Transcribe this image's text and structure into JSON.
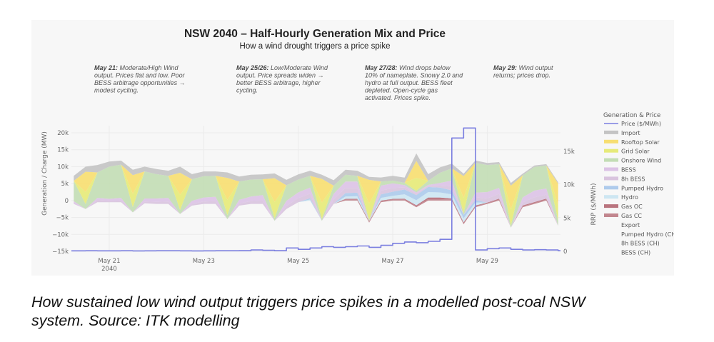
{
  "chart_data": {
    "type": "area",
    "title": "NSW 2040 – Half-Hourly Generation Mix and Price",
    "subtitle": "How a wind drought triggers a price spike",
    "ylabel": "Generation / Charge (MW)",
    "y2label": "RRP ($/MWh)",
    "ylim": [
      -15000,
      20000
    ],
    "y2lim": [
      0,
      18000
    ],
    "y_ticks": [
      {
        "value": 20000,
        "label": "20k"
      },
      {
        "value": 15000,
        "label": "15k"
      },
      {
        "value": 10000,
        "label": "10k"
      },
      {
        "value": 5000,
        "label": "5k"
      },
      {
        "value": 0,
        "label": "0"
      },
      {
        "value": -5000,
        "label": "−5k"
      },
      {
        "value": -10000,
        "label": "−10k"
      },
      {
        "value": -15000,
        "label": "−15k"
      }
    ],
    "y2_ticks": [
      {
        "value": 15000,
        "label": "15k"
      },
      {
        "value": 10000,
        "label": "10k"
      },
      {
        "value": 5000,
        "label": "5k"
      },
      {
        "value": 0,
        "label": "0"
      }
    ],
    "x_ticks": [
      {
        "day": 21,
        "label": "May 21",
        "sublabel": "2040"
      },
      {
        "day": 23,
        "label": "May 23",
        "sublabel": ""
      },
      {
        "day": 25,
        "label": "May 25",
        "sublabel": ""
      },
      {
        "day": 27,
        "label": "May 27",
        "sublabel": ""
      },
      {
        "day": 29,
        "label": "May 29",
        "sublabel": ""
      }
    ],
    "xlim_days": [
      20.2,
      30.55
    ],
    "grid": true,
    "legend": {
      "title": "Generation & Price",
      "position": "right",
      "entries": [
        {
          "name": "Price ($/MWh)",
          "color": "#7b7fe0",
          "kind": "line"
        },
        {
          "name": "Import",
          "color": "#c4c4c4",
          "kind": "area"
        },
        {
          "name": "Rooftop Solar",
          "color": "#f7de72",
          "kind": "area"
        },
        {
          "name": "Grid Solar",
          "color": "#e6ea7a",
          "kind": "area"
        },
        {
          "name": "Onshore Wind",
          "color": "#c3ddb5",
          "kind": "area"
        },
        {
          "name": "BESS",
          "color": "#dcc3e6",
          "kind": "area"
        },
        {
          "name": "8h BESS",
          "color": "#d9c4de",
          "kind": "area"
        },
        {
          "name": "Pumped Hydro",
          "color": "#aecbec",
          "kind": "area"
        },
        {
          "name": "Hydro",
          "color": "#cde6f2",
          "kind": "area"
        },
        {
          "name": "Gas OC",
          "color": "#b9747e",
          "kind": "area"
        },
        {
          "name": "Gas CC",
          "color": "#c2868e",
          "kind": "area"
        },
        {
          "name": "Export",
          "color": "#f7f7f7",
          "kind": "area"
        },
        {
          "name": "Pumped Hydro (CH)",
          "color": "#f7f7f7",
          "kind": "area"
        },
        {
          "name": "8h BESS (CH)",
          "color": "#f7f7f7",
          "kind": "area"
        },
        {
          "name": "BESS (CH)",
          "color": "#f7f7f7",
          "kind": "area"
        }
      ]
    },
    "annotations": [
      {
        "bold": "May 21:",
        "lines": [
          "Moderate/High Wind",
          "output. Prices flat and low. Poor",
          "BESS arbitrage opportunities →",
          "modest cycling."
        ]
      },
      {
        "bold": "May 25/26:",
        "lines": [
          "Low/Moderate Wind",
          "output. Price spreads widen →",
          "better BESS arbitrage, higher",
          "cycling."
        ]
      },
      {
        "bold": "May 27/28:",
        "lines": [
          "Wind drops below",
          "10% of nameplate. Snowy 2.0 and",
          "hydro at full output. BESS fleet",
          "depleted. Open-cycle gas",
          "activated. Prices spike."
        ]
      },
      {
        "bold": "May 29:",
        "lines": [
          "Wind output",
          "returns; prices drop."
        ]
      }
    ],
    "series_note": "Approximate values read from chart, sampled every 6 hours (MW); days are May dates with fractional time",
    "x_days": [
      20.25,
      20.5,
      20.75,
      21.0,
      21.25,
      21.5,
      21.75,
      22.0,
      22.25,
      22.5,
      22.75,
      23.0,
      23.25,
      23.5,
      23.75,
      24.0,
      24.25,
      24.5,
      24.75,
      25.0,
      25.25,
      25.5,
      25.75,
      26.0,
      26.25,
      26.5,
      26.75,
      27.0,
      27.25,
      27.5,
      27.75,
      28.0,
      28.25,
      28.5,
      28.75,
      29.0,
      29.25,
      29.5,
      29.75,
      30.0,
      30.25,
      30.5
    ],
    "series": [
      {
        "name": "Gas CC",
        "values": [
          0,
          0,
          0,
          0,
          0,
          0,
          0,
          0,
          0,
          0,
          0,
          0,
          0,
          0,
          0,
          0,
          0,
          0,
          0,
          0,
          0,
          0,
          0,
          300,
          300,
          200,
          300,
          300,
          300,
          300,
          400,
          400,
          300,
          300,
          300,
          200,
          300,
          0,
          300,
          300,
          300,
          0
        ]
      },
      {
        "name": "Gas OC",
        "values": [
          0,
          0,
          0,
          0,
          0,
          0,
          0,
          0,
          0,
          0,
          0,
          0,
          0,
          0,
          0,
          0,
          0,
          0,
          0,
          0,
          0,
          0,
          0,
          200,
          200,
          200,
          200,
          200,
          250,
          300,
          500,
          500,
          300,
          250,
          250,
          200,
          250,
          0,
          250,
          250,
          250,
          0
        ]
      },
      {
        "name": "Hydro",
        "values": [
          0,
          0,
          0,
          0,
          0,
          0,
          0,
          0,
          0,
          0,
          0,
          0,
          0,
          0,
          0,
          0,
          0,
          0,
          0,
          0,
          300,
          0,
          0,
          700,
          800,
          0,
          800,
          900,
          1300,
          1500,
          1600,
          1500,
          1200,
          1200,
          900,
          0,
          0,
          0,
          0,
          0,
          0,
          0
        ]
      },
      {
        "name": "Pumped Hydro",
        "values": [
          0,
          0,
          0,
          0,
          0,
          0,
          0,
          0,
          0,
          0,
          0,
          0,
          0,
          0,
          0,
          0,
          0,
          0,
          0,
          0,
          400,
          0,
          0,
          1000,
          1000,
          0,
          1000,
          1200,
          1400,
          1500,
          1500,
          1400,
          1200,
          1000,
          700,
          0,
          0,
          0,
          0,
          0,
          0,
          0
        ]
      },
      {
        "name": "8h BESS",
        "values": [
          300,
          0,
          600,
          400,
          500,
          0,
          500,
          600,
          700,
          0,
          500,
          700,
          800,
          0,
          600,
          800,
          1000,
          0,
          900,
          1200,
          1300,
          0,
          1300,
          1500,
          1400,
          0,
          1100,
          1100,
          600,
          400,
          300,
          600,
          1200,
          0,
          800,
          1200,
          1400,
          0,
          900,
          1400,
          1200,
          0
        ]
      },
      {
        "name": "BESS",
        "values": [
          500,
          0,
          700,
          600,
          800,
          0,
          900,
          1000,
          1100,
          0,
          900,
          1200,
          1300,
          0,
          1100,
          1400,
          1600,
          0,
          1500,
          1700,
          1800,
          0,
          1700,
          1900,
          1900,
          0,
          1500,
          1400,
          700,
          400,
          300,
          800,
          1700,
          0,
          1400,
          1900,
          1800,
          0,
          1500,
          2000,
          1800,
          0
        ]
      },
      {
        "name": "Onshore Wind",
        "values": [
          6000,
          1500,
          7500,
          9500,
          9800,
          1500,
          8000,
          7200,
          6500,
          1200,
          6400,
          6300,
          6200,
          1200,
          5400,
          5000,
          4700,
          800,
          4600,
          3800,
          3500,
          600,
          2400,
          2000,
          1700,
          400,
          1200,
          800,
          700,
          500,
          1200,
          3000,
          3600,
          500,
          8800,
          8000,
          7000,
          600,
          6500,
          7000,
          6800,
          1500
        ]
      },
      {
        "name": "Grid Solar",
        "values": [
          0,
          3500,
          0,
          0,
          0,
          4000,
          0,
          0,
          0,
          4500,
          0,
          0,
          0,
          4500,
          0,
          0,
          0,
          4800,
          0,
          0,
          0,
          4800,
          0,
          0,
          0,
          4800,
          0,
          0,
          0,
          3800,
          0,
          0,
          0,
          4500,
          0,
          0,
          0,
          4800,
          0,
          0,
          0,
          4500
        ]
      },
      {
        "name": "Rooftop Solar",
        "values": [
          0,
          6000,
          0,
          0,
          0,
          5500,
          0,
          0,
          0,
          6500,
          0,
          0,
          0,
          6500,
          0,
          0,
          0,
          7000,
          0,
          0,
          0,
          7000,
          0,
          0,
          0,
          7000,
          0,
          0,
          0,
          5000,
          0,
          0,
          0,
          6500,
          0,
          0,
          0,
          7000,
          0,
          0,
          0,
          6500
        ]
      },
      {
        "name": "Import",
        "values": [
          1500,
          1500,
          2200,
          1500,
          1200,
          1600,
          1400,
          1500,
          1500,
          1800,
          1500,
          1400,
          1300,
          1600,
          1500,
          1400,
          1400,
          1400,
          1600,
          1500,
          1500,
          1200,
          1600,
          1500,
          1500,
          900,
          1200,
          1400,
          1500,
          2200,
          2000,
          1600,
          1400,
          700,
          700,
          600,
          600,
          800,
          500,
          400,
          400,
          400
        ]
      },
      {
        "name": "Wind/solar negative dip (charging, MW)",
        "values": [
          -1000,
          -2500,
          -500,
          -500,
          -500,
          -3500,
          -800,
          -1000,
          -1000,
          -4000,
          -1500,
          -1000,
          -1000,
          -5500,
          -1500,
          -1000,
          -1000,
          -6000,
          -2500,
          -500,
          0,
          -6000,
          -1000,
          0,
          0,
          -6500,
          -500,
          0,
          0,
          -2000,
          0,
          0,
          0,
          -7000,
          -2000,
          -1000,
          0,
          -8000,
          -2000,
          -1000,
          0,
          -7500
        ]
      },
      {
        "name": "Price ($/MWh)",
        "axis": "y2",
        "values": [
          80,
          90,
          80,
          70,
          90,
          60,
          70,
          90,
          90,
          70,
          60,
          80,
          90,
          90,
          100,
          200,
          150,
          100,
          500,
          300,
          500,
          700,
          600,
          700,
          800,
          600,
          900,
          1200,
          1400,
          1300,
          1500,
          1800,
          17000,
          18500,
          200,
          400,
          500,
          300,
          200,
          250,
          200,
          100
        ]
      }
    ]
  },
  "caption": {
    "lines": [
      "How sustained low wind output triggers price spikes in a modelled post-coal NSW",
      "system. Source: ITK modelling"
    ]
  }
}
